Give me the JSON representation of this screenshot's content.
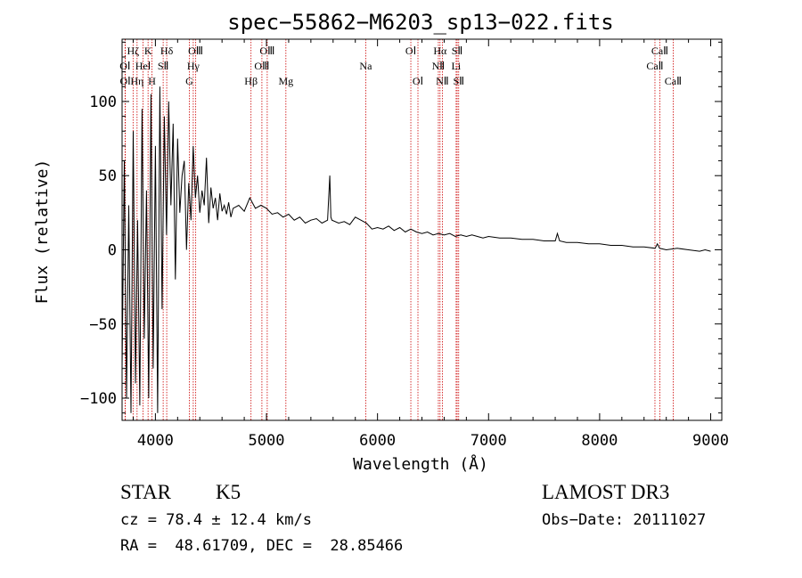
{
  "chart_data": {
    "type": "line",
    "title": "spec−55862−M6203_sp13−022.fits",
    "xlabel": "Wavelength (Å)",
    "ylabel": "Flux (relative)",
    "xlim": [
      3700,
      9100
    ],
    "ylim": [
      -115,
      142
    ],
    "xticks": [
      4000,
      5000,
      6000,
      7000,
      8000,
      9000
    ],
    "xtick_labels": [
      "4000",
      "5000",
      "6000",
      "7000",
      "8000",
      "9000"
    ],
    "yticks": [
      100,
      50,
      0,
      -50,
      -100
    ],
    "ytick_labels": [
      "100",
      "50",
      "0",
      "−50",
      "−100"
    ],
    "line_color": "#000000",
    "marker_color": "#cc0000",
    "series": [
      {
        "name": "flux",
        "x": [
          3700,
          3720,
          3740,
          3760,
          3780,
          3800,
          3820,
          3840,
          3860,
          3880,
          3900,
          3920,
          3940,
          3960,
          3980,
          4000,
          4020,
          4040,
          4060,
          4080,
          4100,
          4120,
          4140,
          4160,
          4180,
          4200,
          4220,
          4240,
          4260,
          4280,
          4300,
          4320,
          4340,
          4360,
          4380,
          4400,
          4420,
          4440,
          4460,
          4480,
          4500,
          4520,
          4540,
          4560,
          4580,
          4600,
          4620,
          4640,
          4660,
          4680,
          4700,
          4750,
          4800,
          4850,
          4900,
          4950,
          5000,
          5050,
          5100,
          5150,
          5200,
          5250,
          5300,
          5350,
          5400,
          5450,
          5500,
          5550,
          5570,
          5580,
          5590,
          5650,
          5700,
          5750,
          5800,
          5850,
          5900,
          5950,
          6000,
          6050,
          6100,
          6150,
          6200,
          6250,
          6300,
          6350,
          6400,
          6450,
          6500,
          6550,
          6600,
          6650,
          6700,
          6750,
          6800,
          6850,
          6900,
          6950,
          7000,
          7100,
          7200,
          7300,
          7400,
          7500,
          7600,
          7620,
          7640,
          7700,
          7800,
          7900,
          8000,
          8100,
          8200,
          8300,
          8400,
          8500,
          8520,
          8540,
          8600,
          8700,
          8800,
          8900,
          8950,
          9000
        ],
        "y": [
          -80,
          60,
          -100,
          30,
          -110,
          80,
          -90,
          20,
          -105,
          95,
          -60,
          40,
          -100,
          105,
          -80,
          70,
          -110,
          110,
          -40,
          90,
          10,
          100,
          30,
          85,
          -20,
          75,
          25,
          50,
          60,
          0,
          45,
          20,
          70,
          35,
          50,
          25,
          40,
          30,
          62,
          18,
          42,
          28,
          35,
          20,
          38,
          26,
          30,
          24,
          32,
          22,
          28,
          30,
          26,
          35,
          28,
          30,
          28,
          24,
          25,
          22,
          24,
          20,
          22,
          18,
          20,
          21,
          18,
          20,
          50,
          22,
          20,
          18,
          19,
          17,
          22,
          20,
          18,
          14,
          15,
          14,
          16,
          13,
          15,
          12,
          14,
          12,
          11,
          12,
          10,
          11,
          10,
          11,
          9,
          10,
          9,
          10,
          9,
          8,
          9,
          8,
          8,
          7,
          7,
          6,
          6,
          11,
          6,
          5,
          5,
          4,
          4,
          3,
          3,
          2,
          2,
          1,
          4,
          1,
          0,
          1,
          0,
          -1,
          0,
          -1
        ]
      }
    ],
    "lines": [
      {
        "label": "OⅠ",
        "wl": 3727,
        "row": 2
      },
      {
        "label": "OⅠ",
        "wl": 3729,
        "row": 3
      },
      {
        "label": "Hζ",
        "wl": 3799,
        "row": 1
      },
      {
        "label": "Hη",
        "wl": 3835,
        "row": 3
      },
      {
        "label": "HeⅠ",
        "wl": 3889,
        "row": 2
      },
      {
        "label": "K",
        "wl": 3934,
        "row": 1
      },
      {
        "label": "H",
        "wl": 3969,
        "row": 3
      },
      {
        "label": "SⅡ",
        "wl": 4070,
        "row": 2
      },
      {
        "label": "Hδ",
        "wl": 4102,
        "row": 1
      },
      {
        "label": "G",
        "wl": 4305,
        "row": 3
      },
      {
        "label": "Hγ",
        "wl": 4341,
        "row": 2
      },
      {
        "label": "OⅢ",
        "wl": 4363,
        "row": 1
      },
      {
        "label": "Hβ",
        "wl": 4861,
        "row": 3
      },
      {
        "label": "OⅢ",
        "wl": 4959,
        "row": 2
      },
      {
        "label": "OⅢ",
        "wl": 5007,
        "row": 1
      },
      {
        "label": "Mg",
        "wl": 5175,
        "row": 3
      },
      {
        "label": "Na",
        "wl": 5894,
        "row": 2
      },
      {
        "label": "OⅠ",
        "wl": 6300,
        "row": 1
      },
      {
        "label": "OⅠ",
        "wl": 6364,
        "row": 3
      },
      {
        "label": "NⅡ",
        "wl": 6548,
        "row": 2
      },
      {
        "label": "Hα",
        "wl": 6563,
        "row": 1
      },
      {
        "label": "NⅡ",
        "wl": 6584,
        "row": 3
      },
      {
        "label": "Li",
        "wl": 6708,
        "row": 2
      },
      {
        "label": "SⅡ",
        "wl": 6717,
        "row": 1
      },
      {
        "label": "SⅡ",
        "wl": 6731,
        "row": 3
      },
      {
        "label": "CaⅡ",
        "wl": 8498,
        "row": 2
      },
      {
        "label": "CaⅡ",
        "wl": 8542,
        "row": 1
      },
      {
        "label": "CaⅡ",
        "wl": 8662,
        "row": 3
      }
    ]
  },
  "footer": {
    "object_class": "STAR",
    "subclass": "K5",
    "survey": "LAMOST DR3",
    "cz": "cz = 78.4 ± 12.4 km/s",
    "obs_date": "Obs−Date: 20111027",
    "coords": "RA =  48.61709, DEC =  28.85466"
  }
}
